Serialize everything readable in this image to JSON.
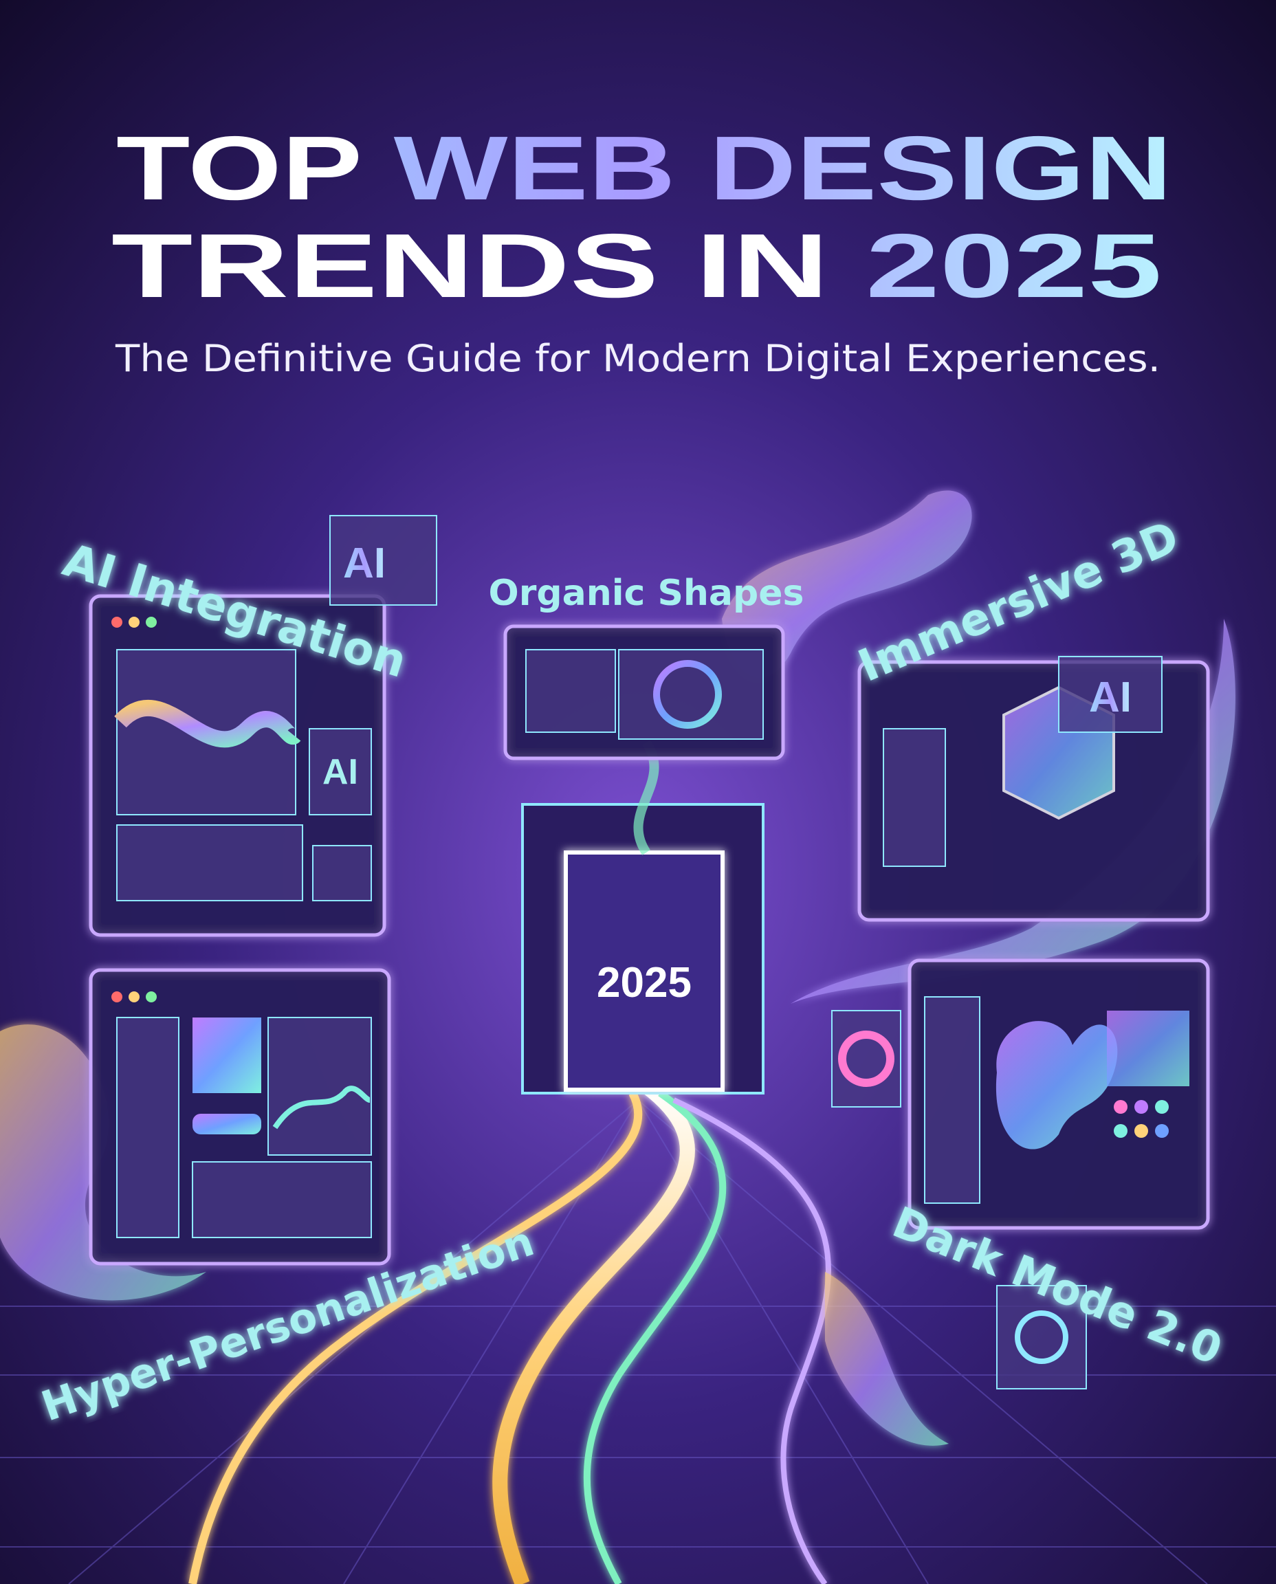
{
  "title": {
    "line1": [
      "TOP",
      "WEB DESIGN"
    ],
    "line2": [
      "TRENDS IN",
      "2025"
    ]
  },
  "subtitle": "The Definitive Guide for Modern Digital Experiences.",
  "labels": [
    "AI Integration",
    "Organic Shapes",
    "Immersive 3D",
    "Hyper-Personalization",
    "Dark Mode 2.0"
  ],
  "badges": [
    "AI",
    "AI",
    "AI"
  ],
  "portal": "2025"
}
